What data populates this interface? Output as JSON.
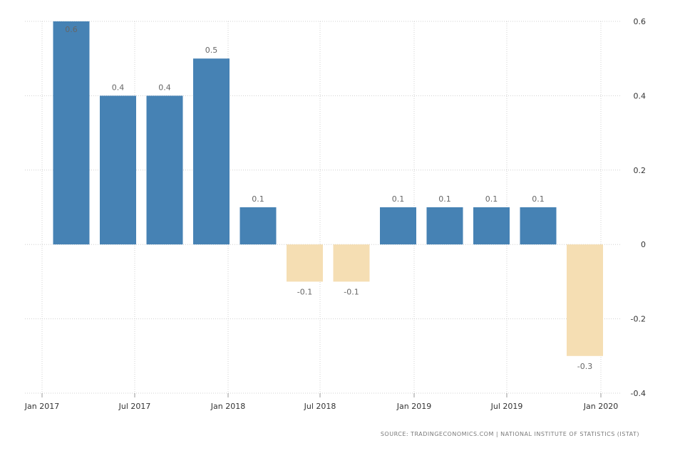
{
  "chart_data": {
    "type": "bar",
    "values": [
      0.6,
      0.4,
      0.4,
      0.5,
      0.1,
      -0.1,
      -0.1,
      0.1,
      0.1,
      0.1,
      0.1,
      -0.3
    ],
    "data_labels": [
      "0.6",
      "0.4",
      "0.4",
      "0.5",
      "0.1",
      "-0.1",
      "-0.1",
      "0.1",
      "0.1",
      "0.1",
      "0.1",
      "-0.3"
    ],
    "ylim": [
      -0.4,
      0.6
    ],
    "y_ticks": [
      "0.6",
      "0.4",
      "0.2",
      "0",
      "-0.2",
      "-0.4"
    ],
    "x_ticks": [
      "Jan 2017",
      "Jul 2017",
      "Jan 2018",
      "Jul 2018",
      "Jan 2019",
      "Jul 2019",
      "Jan 2020"
    ],
    "y_axis_position": "right",
    "grid": true,
    "colors": {
      "positive": "#4682b4",
      "negative": "#f5deb3"
    }
  },
  "source": "SOURCE: TRADINGECONOMICS.COM | NATIONAL INSTITUTE OF STATISTICS (ISTAT)"
}
